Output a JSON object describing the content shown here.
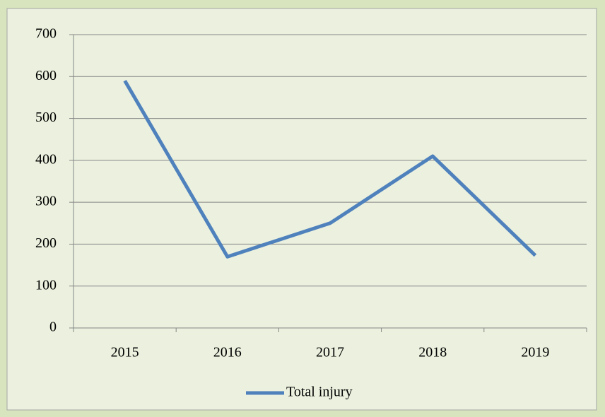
{
  "chart_data": {
    "type": "line",
    "categories": [
      "2015",
      "2016",
      "2017",
      "2018",
      "2019"
    ],
    "series": [
      {
        "name": "Total injury",
        "color": "#4f81bd",
        "values": [
          590,
          170,
          250,
          410,
          173
        ]
      }
    ],
    "ylim": [
      0,
      700
    ],
    "yticks": [
      0,
      100,
      200,
      300,
      400,
      500,
      600,
      700
    ],
    "grid": true,
    "legend": "bottom"
  }
}
